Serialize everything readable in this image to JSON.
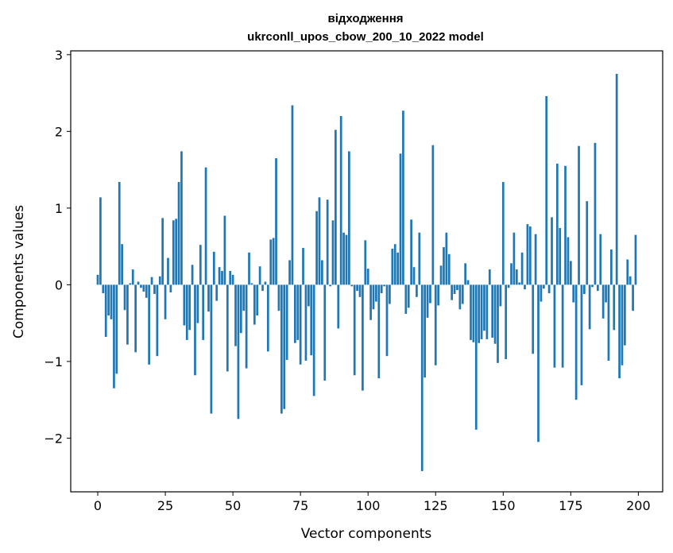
{
  "chart_data": {
    "type": "bar",
    "title_line1": "відходження",
    "title_line2": "ukrconll_upos_cbow_200_10_2022 model",
    "xlabel": "Vector components",
    "ylabel": "Components values",
    "xlim": [
      -10,
      209
    ],
    "ylim": [
      -2.7,
      3.05
    ],
    "xticks": [
      0,
      25,
      50,
      75,
      100,
      125,
      150,
      175,
      200
    ],
    "xtick_labels": [
      "0",
      "25",
      "50",
      "75",
      "100",
      "125",
      "150",
      "175",
      "200"
    ],
    "yticks": [
      -2,
      -1,
      0,
      1,
      2,
      3
    ],
    "ytick_labels": [
      "−2",
      "−1",
      "0",
      "1",
      "2",
      "3"
    ],
    "bar_color": "#1f77b4",
    "x": [
      0,
      1,
      2,
      3,
      4,
      5,
      6,
      7,
      8,
      9,
      10,
      11,
      12,
      13,
      14,
      15,
      16,
      17,
      18,
      19,
      20,
      21,
      22,
      23,
      24,
      25,
      26,
      27,
      28,
      29,
      30,
      31,
      32,
      33,
      34,
      35,
      36,
      37,
      38,
      39,
      40,
      41,
      42,
      43,
      44,
      45,
      46,
      47,
      48,
      49,
      50,
      51,
      52,
      53,
      54,
      55,
      56,
      57,
      58,
      59,
      60,
      61,
      62,
      63,
      64,
      65,
      66,
      67,
      68,
      69,
      70,
      71,
      72,
      73,
      74,
      75,
      76,
      77,
      78,
      79,
      80,
      81,
      82,
      83,
      84,
      85,
      86,
      87,
      88,
      89,
      90,
      91,
      92,
      93,
      94,
      95,
      96,
      97,
      98,
      99,
      100,
      101,
      102,
      103,
      104,
      105,
      106,
      107,
      108,
      109,
      110,
      111,
      112,
      113,
      114,
      115,
      116,
      117,
      118,
      119,
      120,
      121,
      122,
      123,
      124,
      125,
      126,
      127,
      128,
      129,
      130,
      131,
      132,
      133,
      134,
      135,
      136,
      137,
      138,
      139,
      140,
      141,
      142,
      143,
      144,
      145,
      146,
      147,
      148,
      149,
      150,
      151,
      152,
      153,
      154,
      155,
      156,
      157,
      158,
      159,
      160,
      161,
      162,
      163,
      164,
      165,
      166,
      167,
      168,
      169,
      170,
      171,
      172,
      173,
      174,
      175,
      176,
      177,
      178,
      179,
      180,
      181,
      182,
      183,
      184,
      185,
      186,
      187,
      188,
      189,
      190,
      191,
      192,
      193,
      194,
      195,
      196,
      197,
      198,
      199
    ],
    "values": [
      0.13,
      1.14,
      -0.11,
      -0.68,
      -0.4,
      -0.45,
      -1.35,
      -1.16,
      1.34,
      0.53,
      -0.33,
      -0.78,
      0.02,
      0.2,
      -0.88,
      0.04,
      -0.04,
      -0.09,
      -0.17,
      -1.04,
      0.1,
      -0.12,
      -0.93,
      0.11,
      0.87,
      -0.45,
      0.35,
      -0.1,
      0.84,
      0.86,
      1.34,
      1.74,
      -0.53,
      -0.72,
      -0.59,
      0.26,
      -1.18,
      -0.5,
      0.52,
      -0.72,
      1.53,
      -0.35,
      -1.68,
      0.43,
      -0.21,
      0.23,
      0.18,
      0.9,
      -1.13,
      0.18,
      0.13,
      -0.8,
      -1.75,
      -0.63,
      -0.34,
      -1.09,
      0.42,
      0.02,
      -0.52,
      -0.4,
      0.24,
      -0.08,
      0.04,
      -0.87,
      0.59,
      0.61,
      1.65,
      -0.34,
      -1.68,
      -1.62,
      -0.98,
      0.32,
      2.34,
      -0.76,
      -0.72,
      -1.04,
      0.48,
      -0.99,
      -0.28,
      -0.92,
      -1.45,
      0.96,
      1.14,
      0.32,
      -1.25,
      1.11,
      -0.02,
      0.84,
      2.02,
      -0.57,
      2.2,
      0.68,
      0.65,
      1.74,
      -0.02,
      -1.18,
      -0.08,
      -0.16,
      -1.38,
      0.58,
      0.21,
      -0.46,
      -0.32,
      -0.22,
      -1.22,
      -0.11,
      -0.02,
      -0.93,
      -0.25,
      0.47,
      0.53,
      0.42,
      1.71,
      2.27,
      -0.38,
      -0.3,
      0.85,
      0.23,
      -0.16,
      0.68,
      -2.43,
      -1.21,
      -0.43,
      -0.24,
      1.82,
      -1.05,
      -0.27,
      0.25,
      0.49,
      0.68,
      0.4,
      -0.2,
      -0.12,
      -0.07,
      -0.32,
      -0.25,
      0.28,
      0.06,
      -0.72,
      -0.75,
      -1.89,
      -0.76,
      -0.71,
      -0.6,
      -0.71,
      0.2,
      -0.69,
      -0.77,
      -1.02,
      -0.28,
      1.34,
      -0.97,
      -0.04,
      0.28,
      0.68,
      0.2,
      0.03,
      0.42,
      -0.06,
      0.79,
      0.76,
      -0.9,
      0.66,
      -2.05,
      -0.22,
      -0.05,
      2.46,
      -0.11,
      0.88,
      -1.08,
      1.58,
      0.74,
      -1.08,
      1.55,
      0.62,
      0.31,
      -0.23,
      -1.5,
      1.81,
      -1.31,
      -0.12,
      1.09,
      -0.58,
      -0.03,
      1.85,
      -0.08,
      0.66,
      -0.44,
      -0.23,
      -0.99,
      0.46,
      -0.59,
      2.75,
      -1.22,
      -1.05,
      -0.79,
      0.33,
      0.11,
      -0.34,
      0.65
    ]
  }
}
